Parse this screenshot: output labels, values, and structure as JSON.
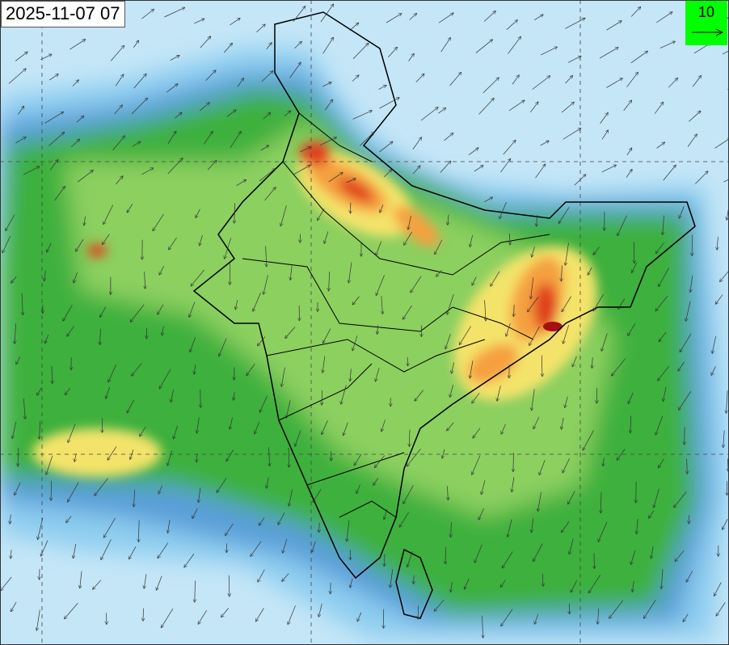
{
  "timestamp": "2025-11-07 07",
  "legend": {
    "value": "10",
    "icon": "wind-vector-reference-arrow",
    "background": "#00ff00"
  },
  "colors": {
    "ocean_low": "#c4e6f7",
    "level1": "#8ecdf0",
    "level2": "#5a9fd8",
    "level3": "#3db03d",
    "level4": "#8cd060",
    "level5": "#f4e36b",
    "level6": "#f5a040",
    "level7": "#e0401e",
    "level8": "#a81010"
  },
  "map": {
    "type": "field-with-wind-vectors",
    "grid": "dashed lat/lon lines",
    "boundaries": "state borders"
  }
}
